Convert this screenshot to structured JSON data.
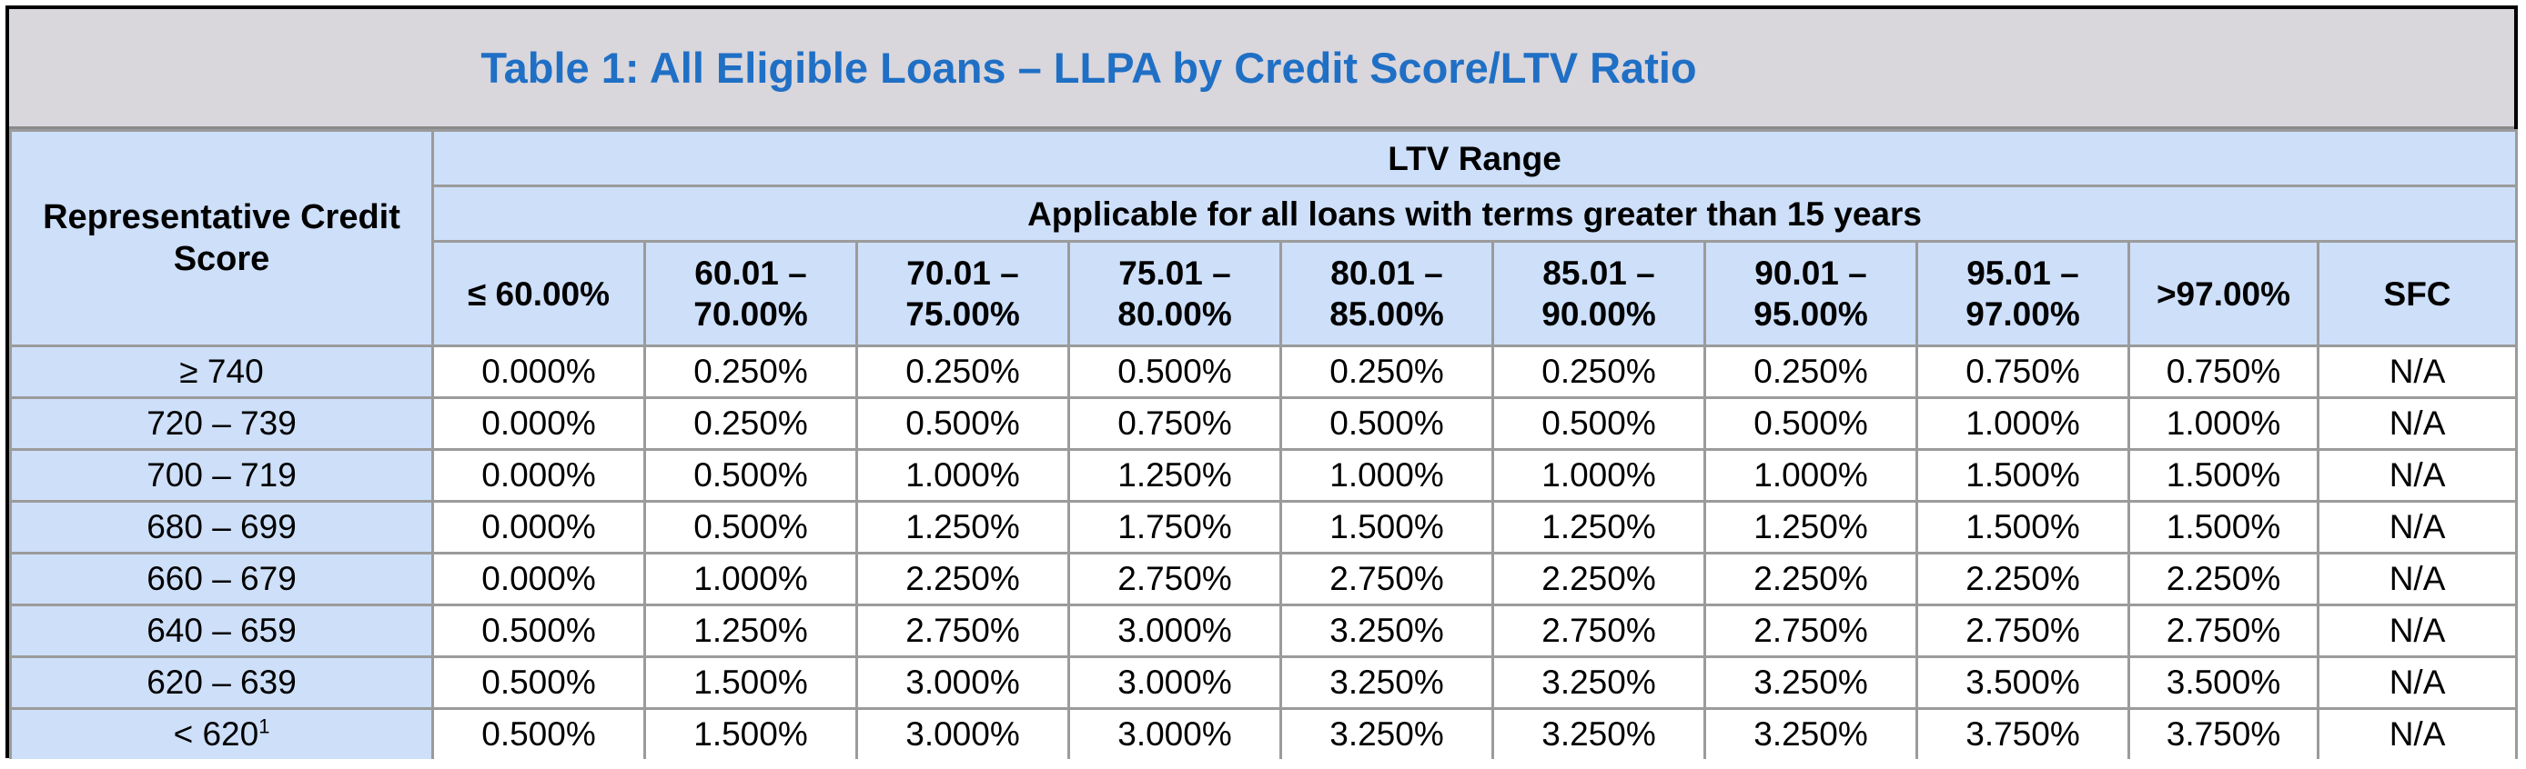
{
  "title": "Table 1: All Eligible Loans – LLPA by Credit Score/LTV Ratio",
  "header": {
    "row_label": "Representative Credit Score",
    "ltv_range": "LTV Range",
    "terms_note": "Applicable for all loans with terms greater than 15 years",
    "columns": [
      {
        "line1": "≤ 60.00%",
        "line2": ""
      },
      {
        "line1": "60.01 –",
        "line2": "70.00%"
      },
      {
        "line1": "70.01 –",
        "line2": "75.00%"
      },
      {
        "line1": "75.01 –",
        "line2": "80.00%"
      },
      {
        "line1": "80.01 –",
        "line2": "85.00%"
      },
      {
        "line1": "85.01 –",
        "line2": "90.00%"
      },
      {
        "line1": "90.01 –",
        "line2": "95.00%"
      },
      {
        "line1": "95.01 –",
        "line2": "97.00%"
      },
      {
        "line1": ">97.00%",
        "line2": ""
      },
      {
        "line1": "SFC",
        "line2": ""
      }
    ]
  },
  "rows": [
    {
      "label": "≥ 740",
      "sup": "",
      "values": [
        "0.000%",
        "0.250%",
        "0.250%",
        "0.500%",
        "0.250%",
        "0.250%",
        "0.250%",
        "0.750%",
        "0.750%",
        "N/A"
      ]
    },
    {
      "label": "720 – 739",
      "sup": "",
      "values": [
        "0.000%",
        "0.250%",
        "0.500%",
        "0.750%",
        "0.500%",
        "0.500%",
        "0.500%",
        "1.000%",
        "1.000%",
        "N/A"
      ]
    },
    {
      "label": "700 – 719",
      "sup": "",
      "values": [
        "0.000%",
        "0.500%",
        "1.000%",
        "1.250%",
        "1.000%",
        "1.000%",
        "1.000%",
        "1.500%",
        "1.500%",
        "N/A"
      ]
    },
    {
      "label": "680 – 699",
      "sup": "",
      "values": [
        "0.000%",
        "0.500%",
        "1.250%",
        "1.750%",
        "1.500%",
        "1.250%",
        "1.250%",
        "1.500%",
        "1.500%",
        "N/A"
      ]
    },
    {
      "label": "660 – 679",
      "sup": "",
      "values": [
        "0.000%",
        "1.000%",
        "2.250%",
        "2.750%",
        "2.750%",
        "2.250%",
        "2.250%",
        "2.250%",
        "2.250%",
        "N/A"
      ]
    },
    {
      "label": "640 – 659",
      "sup": "",
      "values": [
        "0.500%",
        "1.250%",
        "2.750%",
        "3.000%",
        "3.250%",
        "2.750%",
        "2.750%",
        "2.750%",
        "2.750%",
        "N/A"
      ]
    },
    {
      "label": "620 – 639",
      "sup": "",
      "values": [
        "0.500%",
        "1.500%",
        "3.000%",
        "3.000%",
        "3.250%",
        "3.250%",
        "3.250%",
        "3.500%",
        "3.500%",
        "N/A"
      ]
    },
    {
      "label": "< 620",
      "sup": "1",
      "values": [
        "0.500%",
        "1.500%",
        "3.000%",
        "3.000%",
        "3.250%",
        "3.250%",
        "3.250%",
        "3.750%",
        "3.750%",
        "N/A"
      ]
    }
  ]
}
